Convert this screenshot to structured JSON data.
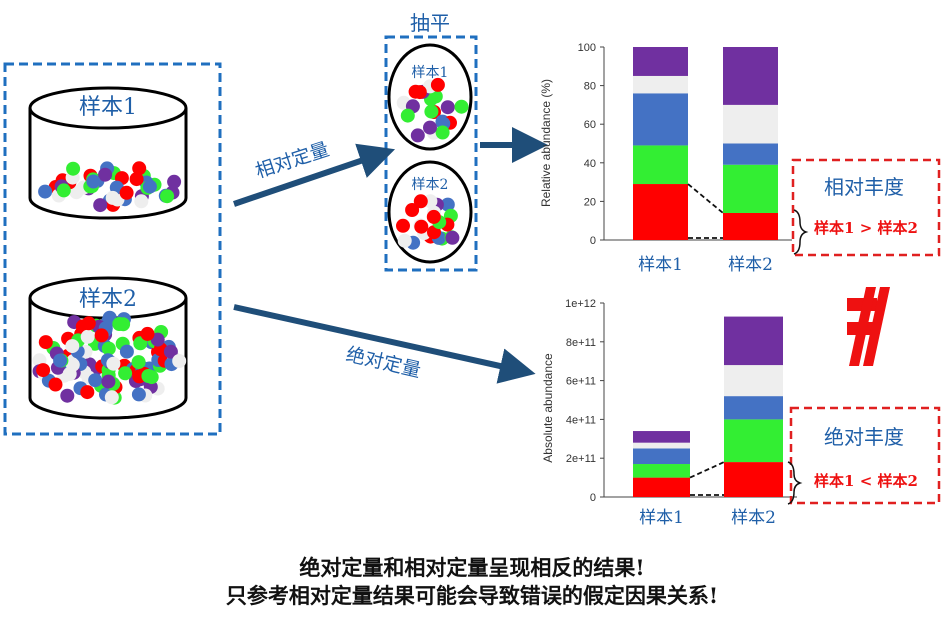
{
  "samples": {
    "sample1_label": "样本1",
    "sample2_label": "样本2"
  },
  "subsample": {
    "title": "抽平",
    "sample1_label": "样本1",
    "sample2_label": "样本2"
  },
  "arrows": {
    "relative_label": "相对定量",
    "absolute_label": "绝对定量"
  },
  "callouts": {
    "relative_title": "相对丰度",
    "relative_compare": "样本1 > 样本2",
    "absolute_title": "绝对丰度",
    "absolute_compare": "样本1 < 样本2"
  },
  "captions": {
    "line1": "绝对定量和相对定量呈现相反的结果!",
    "line2": "只参考相对定量结果可能会导致错误的假定因果关系!"
  },
  "colors": {
    "red": "#ff0000",
    "green": "#33ee33",
    "blue": "#4472c4",
    "gray": "#eeeeee",
    "purple": "#7030a0",
    "box_blue": "#1f6fbf",
    "callout_red": "#e02020",
    "arrow_navy": "#1f4e79"
  },
  "chart_data": [
    {
      "type": "bar",
      "stacked": true,
      "categories": [
        "样本1",
        "样本2"
      ],
      "ylabel": "Relative abundance (%)",
      "ylim": [
        0,
        100
      ],
      "yticks": [
        0,
        20,
        40,
        60,
        80,
        100
      ],
      "ytick_labels": [
        "0",
        "20",
        "40",
        "60",
        "80",
        "100"
      ],
      "series": [
        {
          "color": "#ff0000",
          "values": [
            29,
            14
          ]
        },
        {
          "color": "#33ee33",
          "values": [
            20,
            25
          ]
        },
        {
          "color": "#4472c4",
          "values": [
            27,
            11
          ]
        },
        {
          "color": "#eeeeee",
          "values": [
            9,
            20
          ]
        },
        {
          "color": "#7030a0",
          "values": [
            15,
            30
          ]
        }
      ]
    },
    {
      "type": "bar",
      "stacked": true,
      "categories": [
        "样本1",
        "样本2"
      ],
      "ylabel": "Absolute abundance",
      "ylim": [
        0,
        1000000000000.0
      ],
      "yticks": [
        0,
        200000000000.0,
        400000000000.0,
        600000000000.0,
        800000000000.0,
        1000000000000.0
      ],
      "ytick_labels": [
        "0",
        "2e+11",
        "4e+11",
        "6e+11",
        "8e+11",
        "1e+12"
      ],
      "series": [
        {
          "color": "#ff0000",
          "values": [
            100000000000.0,
            180000000000.0
          ]
        },
        {
          "color": "#33ee33",
          "values": [
            70000000000.0,
            220000000000.0
          ]
        },
        {
          "color": "#4472c4",
          "values": [
            80000000000.0,
            120000000000.0
          ]
        },
        {
          "color": "#eeeeee",
          "values": [
            30000000000.0,
            160000000000.0
          ]
        },
        {
          "color": "#7030a0",
          "values": [
            60000000000.0,
            250000000000.0
          ]
        }
      ]
    }
  ]
}
